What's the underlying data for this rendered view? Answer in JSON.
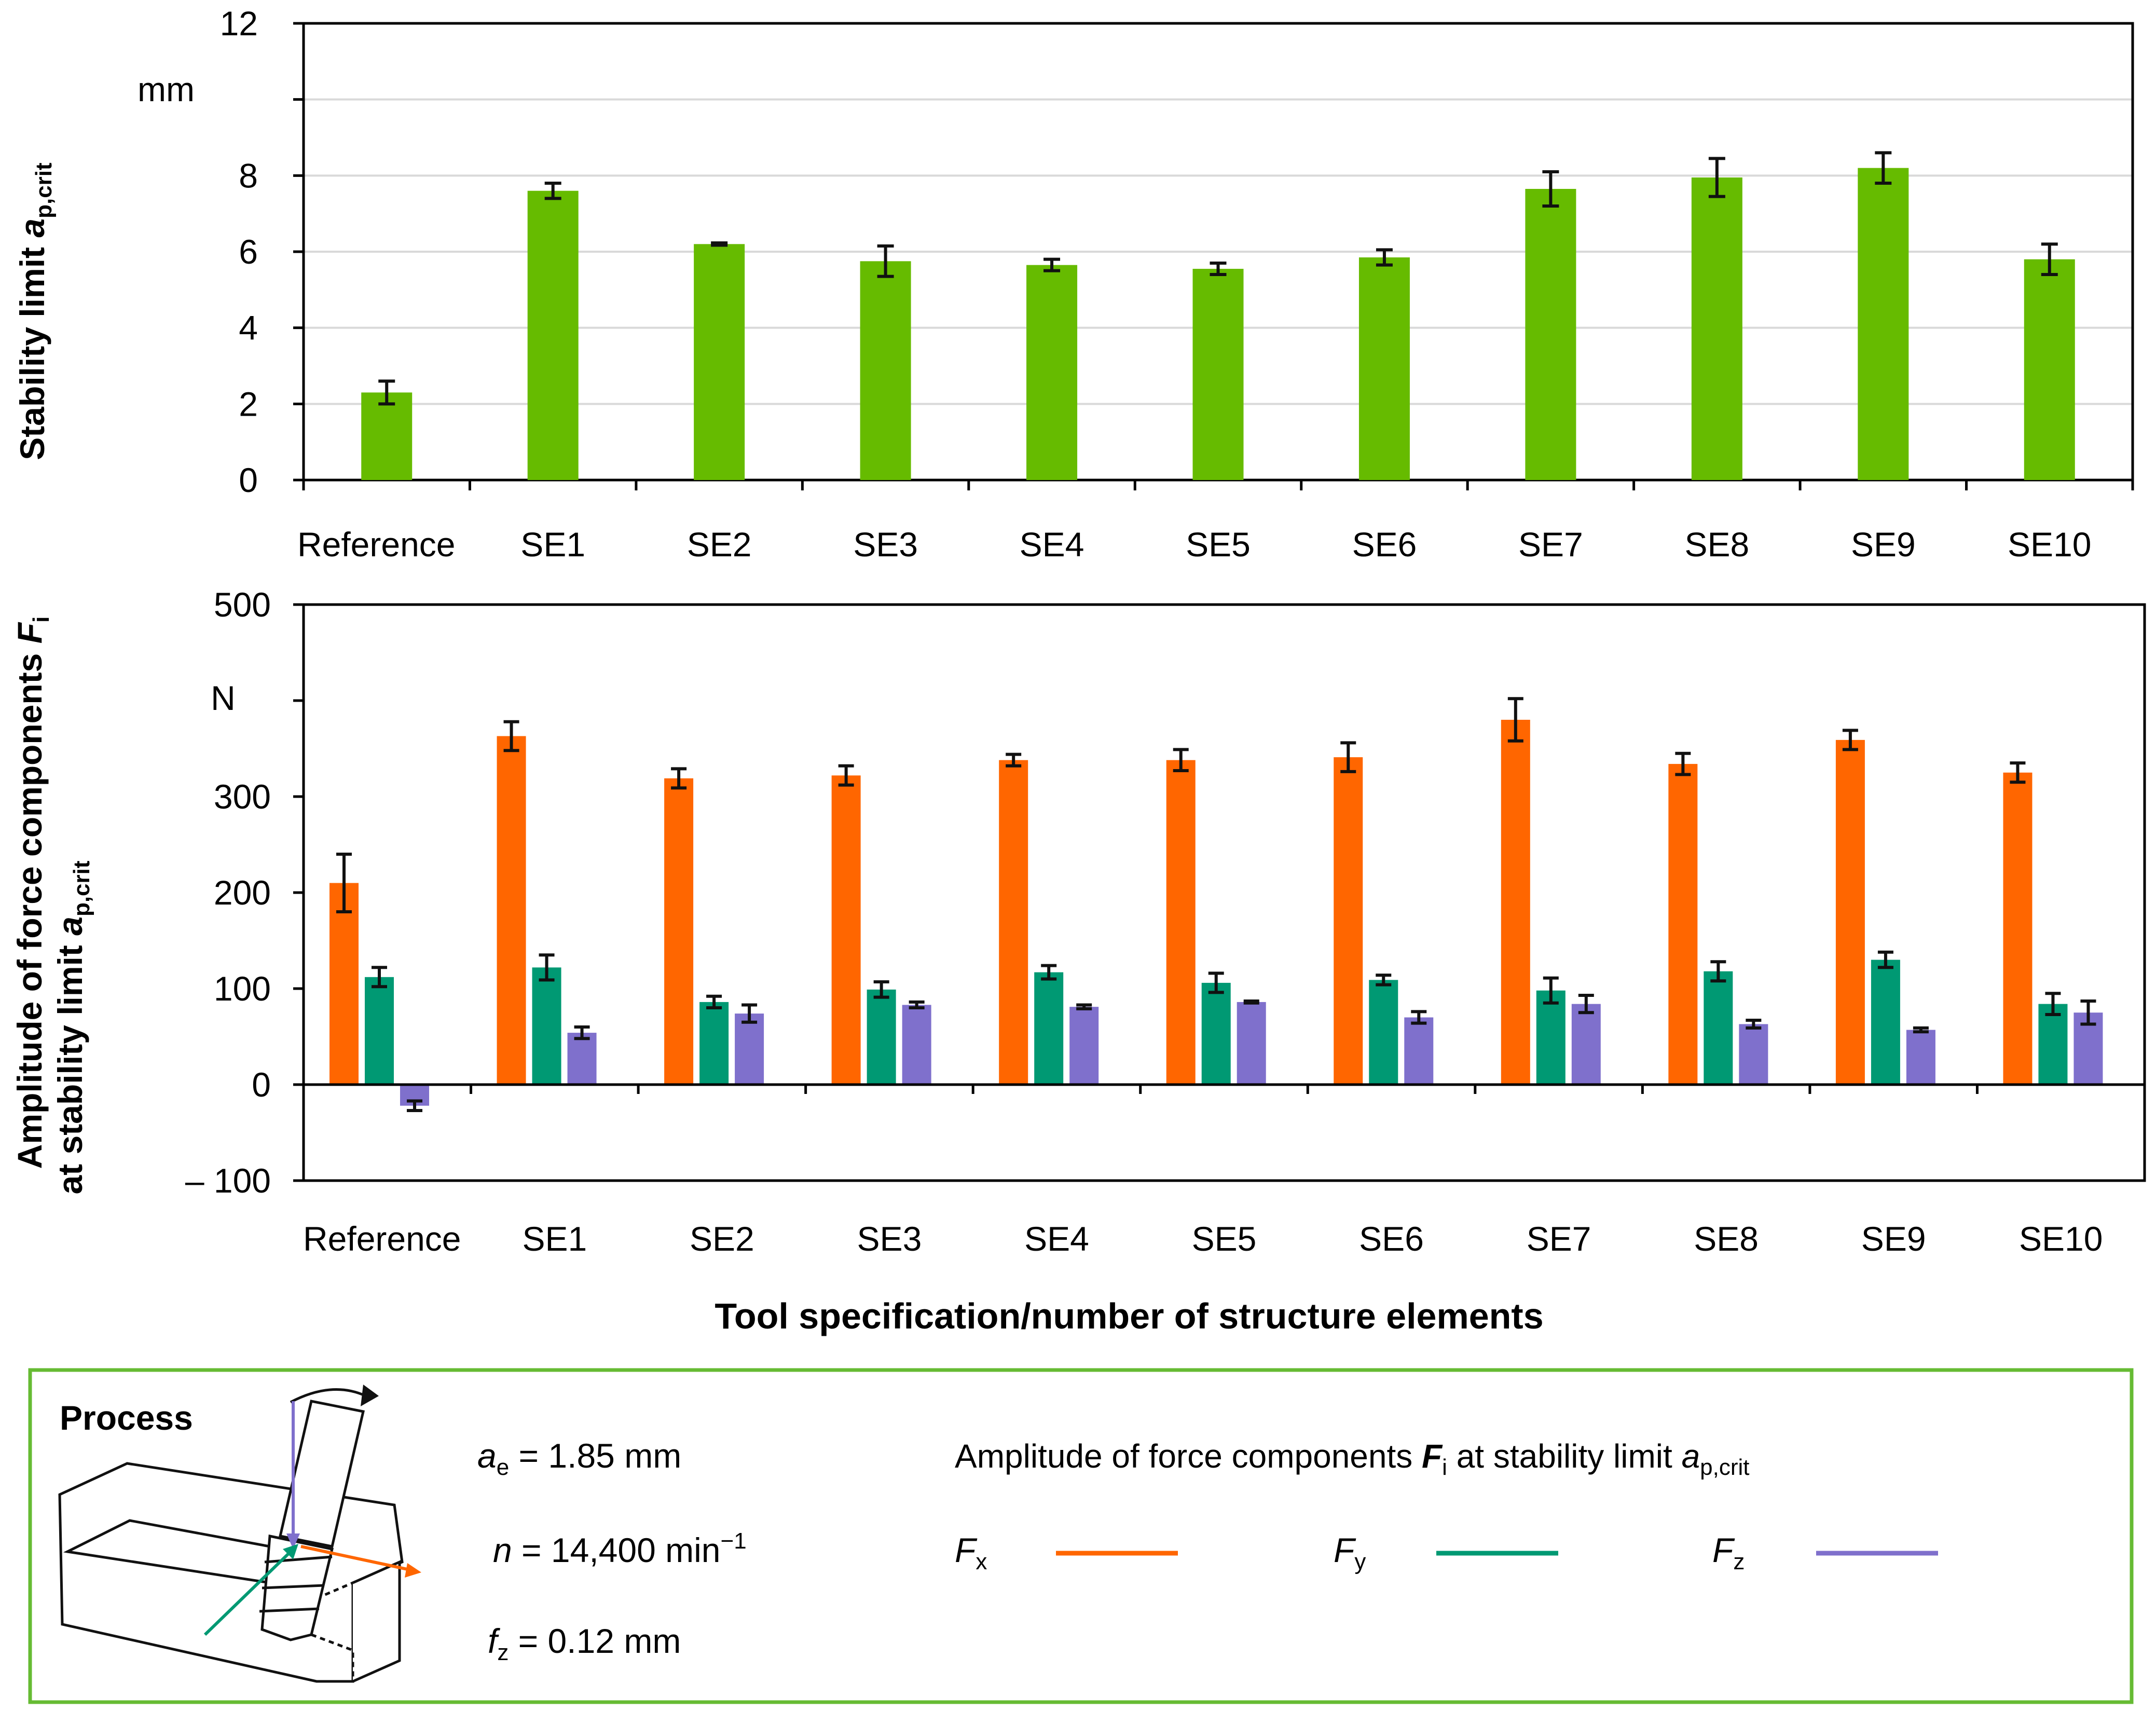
{
  "chart_data": [
    {
      "type": "bar",
      "ylabel": "Stability limit",
      "ylabel_symbol": "a",
      "ylabel_subscript": "p,crit",
      "unit": "mm",
      "yticks": [
        "0",
        "2",
        "4",
        "6",
        "8",
        "",
        "12"
      ],
      "ylim": [
        0,
        12
      ],
      "grid": true,
      "categories": [
        "Reference",
        "SE1",
        "SE2",
        "SE3",
        "SE4",
        "SE5",
        "SE6",
        "SE7",
        "SE8",
        "SE9",
        "SE10"
      ],
      "series": [
        {
          "name": "a_p,crit",
          "color": "#66bb00",
          "values": [
            2.3,
            7.6,
            6.2,
            5.75,
            5.65,
            5.55,
            5.85,
            7.65,
            7.95,
            8.2,
            5.8
          ],
          "errors": [
            0.3,
            0.2,
            0.03,
            0.4,
            0.15,
            0.15,
            0.2,
            0.45,
            0.5,
            0.4,
            0.4
          ]
        }
      ]
    },
    {
      "type": "bar",
      "ylabel_line1": "Amplitude of force components",
      "ylabel_symbol": "F",
      "ylabel_symbol_sub": "i",
      "ylabel_line2": "at stability limit",
      "ylabel_line2_symbol": "a",
      "ylabel_line2_sub": "p,crit",
      "unit": "N",
      "yticks": [
        "– 100",
        "0",
        "100",
        "200",
        "300",
        "",
        "500"
      ],
      "ylim": [
        -100,
        500
      ],
      "grid": false,
      "categories": [
        "Reference",
        "SE1",
        "SE2",
        "SE3",
        "SE4",
        "SE5",
        "SE6",
        "SE7",
        "SE8",
        "SE9",
        "SE10"
      ],
      "xlabel": "Tool specification/number of structure elements",
      "series": [
        {
          "name": "Fx",
          "color": "#ff6600",
          "values": [
            210,
            363,
            319,
            322,
            338,
            338,
            341,
            380,
            334,
            359,
            325
          ],
          "errors": [
            30,
            15,
            10,
            10,
            6,
            11,
            15,
            22,
            11,
            10,
            10
          ]
        },
        {
          "name": "Fy",
          "color": "#009973",
          "values": [
            112,
            122,
            86,
            99,
            117,
            106,
            109,
            98,
            118,
            130,
            null
          ],
          "errors": [
            10,
            13,
            6,
            8,
            7,
            10,
            5,
            13,
            10,
            8,
            null
          ]
        },
        {
          "name": "Fz",
          "color": "#7f70cc",
          "values": [
            -22,
            54,
            74,
            83,
            81,
            86,
            70,
            84,
            63,
            57,
            75
          ],
          "errors": [
            5,
            6,
            9,
            3,
            2,
            1,
            6,
            9,
            4,
            2,
            12
          ]
        }
      ]
    }
  ],
  "chart_data_note_fy_se10": 84,
  "chart_data_note_fy_se10_error": 11,
  "process_box": {
    "title": "Process",
    "params": [
      {
        "sym": "a",
        "sub": "e",
        "sup": "",
        "text": " = 1.85 mm"
      },
      {
        "sym": "n",
        "sub": "",
        "sup": "−1",
        "text": " = 14,400 min"
      },
      {
        "sym": "f",
        "sub": "z",
        "sup": "",
        "text": " = 0.12 mm"
      }
    ],
    "legend_title_pre": "Amplitude of force components ",
    "legend_title_sym": "F",
    "legend_title_sub": "i",
    "legend_title_mid": " at stability limit ",
    "legend_title_sym2": "a",
    "legend_title_sub2": "p,crit",
    "legend": [
      {
        "sym": "F",
        "sub": "x",
        "color": "#ff6600"
      },
      {
        "sym": "F",
        "sub": "y",
        "color": "#009973"
      },
      {
        "sym": "F",
        "sub": "z",
        "color": "#7f70cc"
      }
    ],
    "border_color": "#66bb33"
  }
}
